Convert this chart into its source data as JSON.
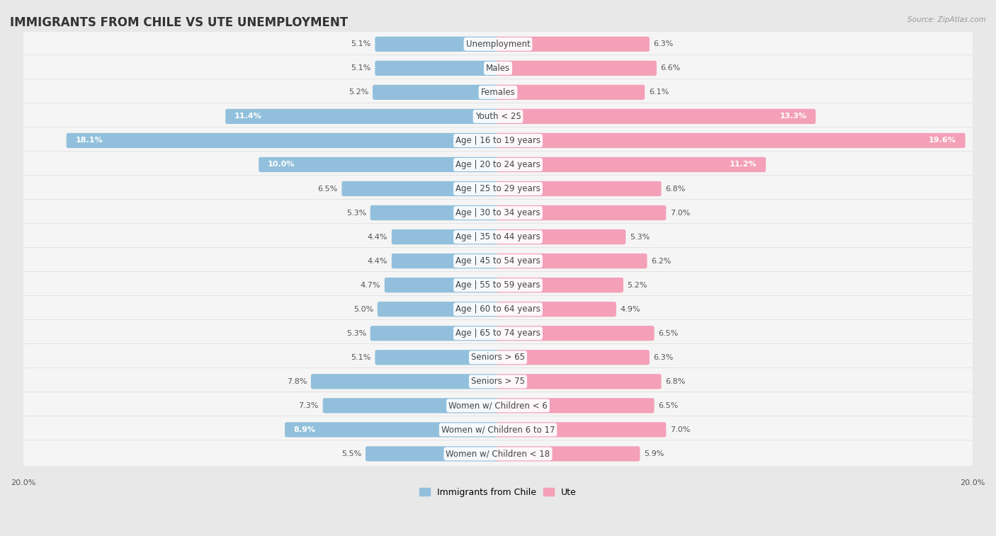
{
  "title": "IMMIGRANTS FROM CHILE VS UTE UNEMPLOYMENT",
  "source": "Source: ZipAtlas.com",
  "categories": [
    "Unemployment",
    "Males",
    "Females",
    "Youth < 25",
    "Age | 16 to 19 years",
    "Age | 20 to 24 years",
    "Age | 25 to 29 years",
    "Age | 30 to 34 years",
    "Age | 35 to 44 years",
    "Age | 45 to 54 years",
    "Age | 55 to 59 years",
    "Age | 60 to 64 years",
    "Age | 65 to 74 years",
    "Seniors > 65",
    "Seniors > 75",
    "Women w/ Children < 6",
    "Women w/ Children 6 to 17",
    "Women w/ Children < 18"
  ],
  "left_values": [
    5.1,
    5.1,
    5.2,
    11.4,
    18.1,
    10.0,
    6.5,
    5.3,
    4.4,
    4.4,
    4.7,
    5.0,
    5.3,
    5.1,
    7.8,
    7.3,
    8.9,
    5.5
  ],
  "right_values": [
    6.3,
    6.6,
    6.1,
    13.3,
    19.6,
    11.2,
    6.8,
    7.0,
    5.3,
    6.2,
    5.2,
    4.9,
    6.5,
    6.3,
    6.8,
    6.5,
    7.0,
    5.9
  ],
  "left_color": "#92c0dc",
  "right_color": "#f4a0b8",
  "left_color_dark": "#6aaac8",
  "right_color_dark": "#e8789a",
  "background_color": "#e8e8e8",
  "bar_bg_color": "#f5f5f5",
  "max_value": 20.0,
  "legend_left": "Immigrants from Chile",
  "legend_right": "Ute",
  "title_fontsize": 12,
  "label_fontsize": 8.5,
  "value_fontsize": 8.0,
  "inside_threshold": 8.0
}
